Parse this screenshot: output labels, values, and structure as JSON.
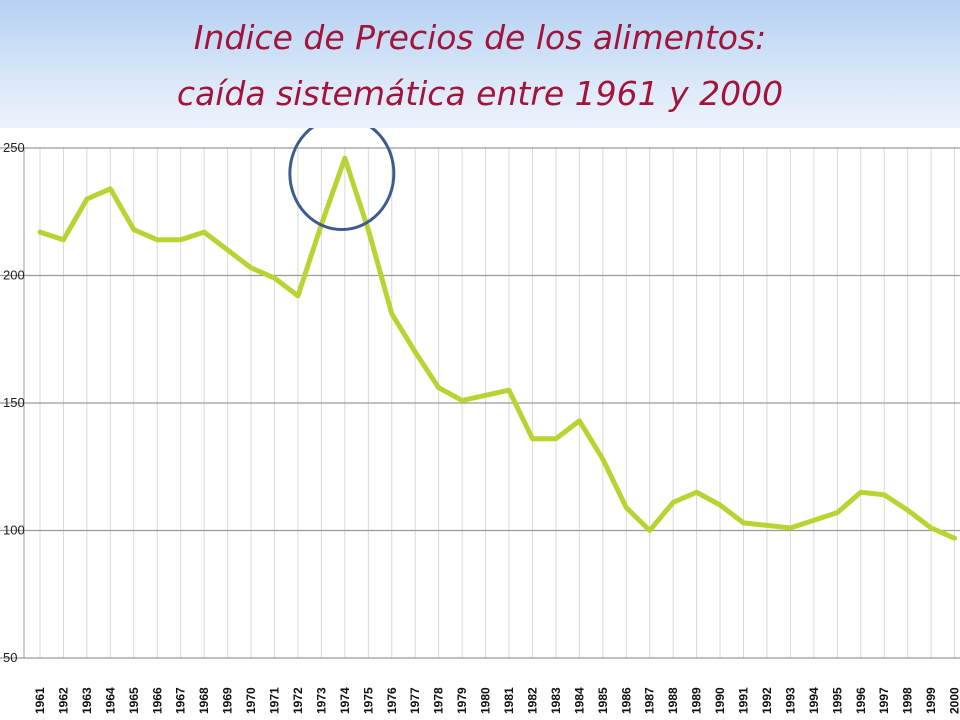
{
  "title": {
    "line1": "Indice de Precios de los alimentos:",
    "line2": "caída sistemática entre 1961 y 2000"
  },
  "colors": {
    "title": "#a3143a",
    "line": "#b8d432",
    "highlight_circle": "#3d5b8f",
    "grid": "#d9d9d9",
    "axis": "#9a9a9a"
  },
  "chart_data": {
    "type": "line",
    "ylim": [
      50,
      250
    ],
    "yticks": [
      50,
      100,
      150,
      200,
      250
    ],
    "grid": {
      "vertical": true,
      "horizontal": true
    },
    "x": [
      1961,
      1962,
      1963,
      1964,
      1965,
      1966,
      1967,
      1968,
      1969,
      1970,
      1971,
      1972,
      1973,
      1974,
      1975,
      1976,
      1977,
      1978,
      1979,
      1980,
      1981,
      1982,
      1983,
      1984,
      1985,
      1986,
      1987,
      1988,
      1989,
      1990,
      1991,
      1992,
      1993,
      1994,
      1995,
      1996,
      1997,
      1998,
      1999,
      2000
    ],
    "xtick_labels": [
      "1961",
      "1962",
      "1963",
      "1964",
      "1965",
      "1966",
      "1967",
      "1968",
      "1969",
      "1970",
      "1971",
      "1972",
      "1973",
      "1974",
      "1975",
      "1976",
      "1977",
      "1978",
      "1979",
      "1980",
      "1981",
      "1982",
      "1983",
      "1984",
      "1985",
      "1986",
      "1987",
      "1988",
      "1989",
      "1990",
      "1991",
      "1992",
      "1993",
      "1994",
      "1995",
      "1996",
      "1997",
      "1998",
      "1999",
      "2000"
    ],
    "series": [
      {
        "values": [
          217,
          214,
          230,
          234,
          218,
          214,
          214,
          217,
          210,
          203,
          199,
          192,
          220,
          246,
          218,
          185,
          170,
          156,
          151,
          153,
          155,
          136,
          136,
          143,
          128,
          109,
          100,
          111,
          115,
          110,
          103,
          102,
          101,
          104,
          107,
          115,
          114,
          108,
          101,
          97
        ]
      }
    ],
    "annotations": [
      {
        "type": "circle",
        "x": 1974,
        "y": 240,
        "note": "peak highlighted"
      }
    ]
  }
}
